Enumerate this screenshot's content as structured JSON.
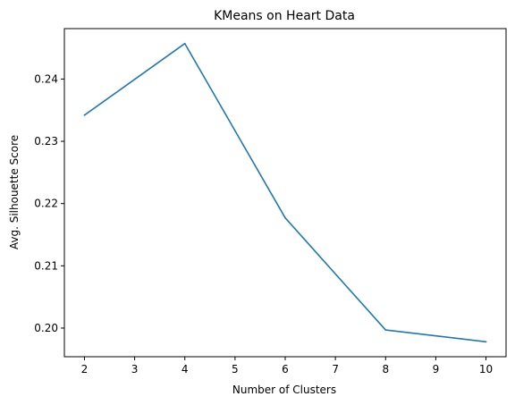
{
  "chart_data": {
    "type": "line",
    "title": "KMeans on Heart Data",
    "xlabel": "Number of Clusters",
    "ylabel": "Avg. Silhouette Score",
    "x": [
      2,
      4,
      6,
      8,
      10
    ],
    "series": [
      {
        "values": [
          0.2342,
          0.2457,
          0.2177,
          0.1997,
          0.1978
        ],
        "color": "#1f77b4"
      }
    ],
    "xlim": [
      1.6,
      10.4
    ],
    "ylim": [
      0.1954,
      0.2481
    ],
    "xticks": [
      2,
      3,
      4,
      5,
      6,
      7,
      8,
      9,
      10
    ],
    "xtick_labels": [
      "2",
      "3",
      "4",
      "5",
      "6",
      "7",
      "8",
      "9",
      "10"
    ],
    "yticks": [
      0.2,
      0.21,
      0.22,
      0.23,
      0.24
    ],
    "ytick_labels": [
      "0.20",
      "0.21",
      "0.22",
      "0.23",
      "0.24"
    ],
    "grid": false,
    "legend": false
  }
}
